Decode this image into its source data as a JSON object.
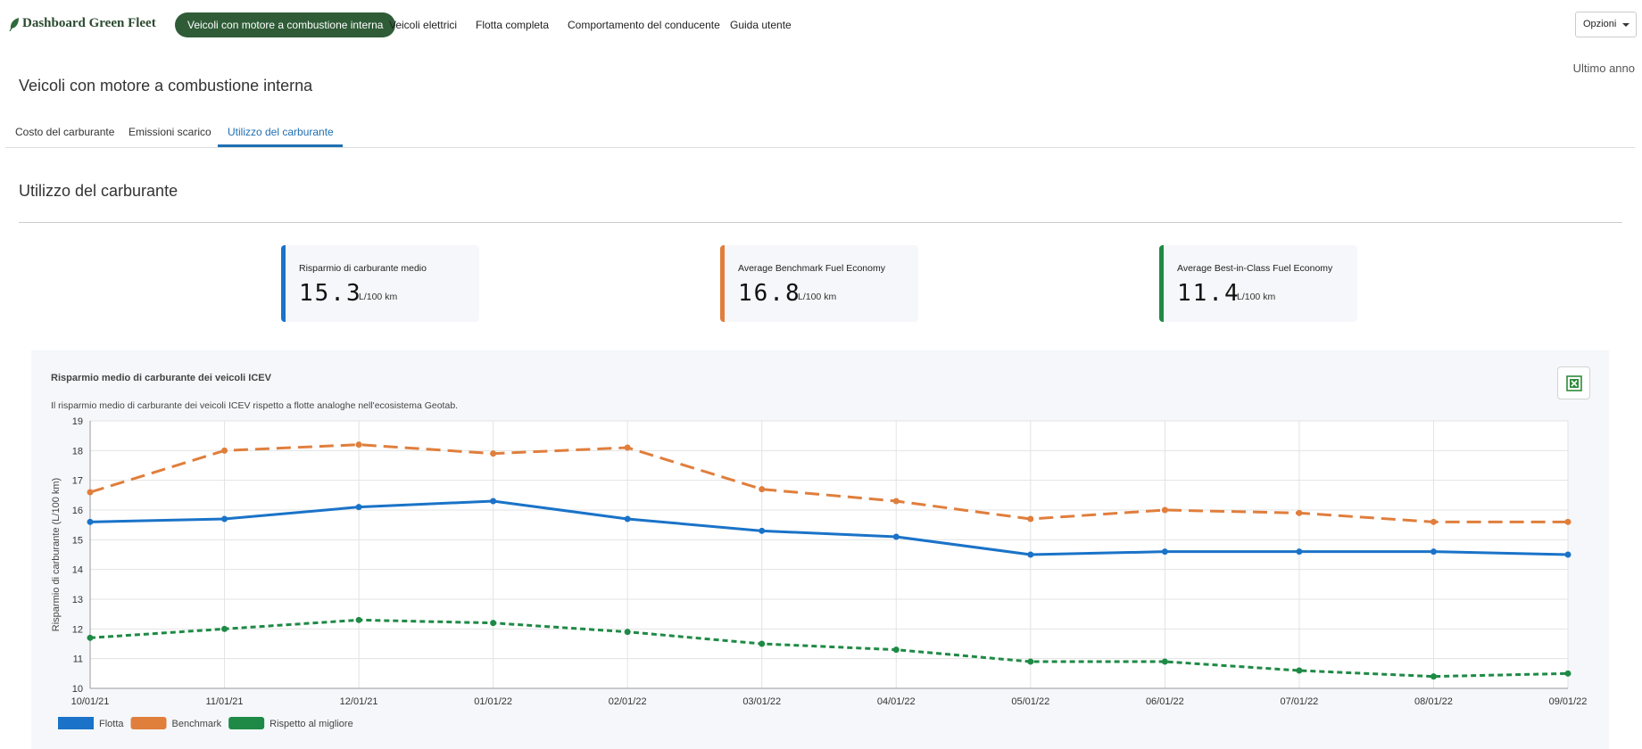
{
  "nav": {
    "logo": "Dashboard Green Fleet",
    "items": [
      {
        "label": "Veicoli con motore a combustione interna",
        "active": true
      },
      {
        "label": "Veicoli elettrici"
      },
      {
        "label": "Flotta completa"
      },
      {
        "label": "Comportamento del conducente"
      },
      {
        "label": "Guida utente"
      }
    ],
    "options_label": "Opzioni"
  },
  "period": "Ultimo anno",
  "page_title": "Veicoli con motore a combustione interna",
  "tabs": [
    {
      "label": "Costo del carburante"
    },
    {
      "label": "Emissioni scarico"
    },
    {
      "label": "Utilizzo del carburante",
      "active": true
    }
  ],
  "section_title": "Utilizzo del carburante",
  "cards": [
    {
      "label": "Risparmio di carburante medio",
      "value": "15.3",
      "unit": "L/100 km",
      "color": "#1a73c8"
    },
    {
      "label": "Average Benchmark Fuel Economy",
      "value": "16.8",
      "unit": "L/100 km",
      "color": "#e07e3c"
    },
    {
      "label": "Average Best-in-Class Fuel Economy",
      "value": "11.4",
      "unit": "L/100 km",
      "color": "#1e8a45"
    }
  ],
  "chart_panel": {
    "title": "Risparmio medio di carburante dei veicoli ICEV",
    "subtitle": "Il risparmio medio di carburante dei veicoli ICEV rispetto a flotte analoghe nell'ecosistema Geotab.",
    "export_icon": "excel-export-icon"
  },
  "chart_data": {
    "type": "line",
    "ylabel": "Risparmio di carburante (L/100 km)",
    "xlabel": "",
    "ylim": [
      10,
      19
    ],
    "yticks": [
      "10",
      "11",
      "12",
      "13",
      "14",
      "15",
      "16",
      "17",
      "18",
      "19"
    ],
    "categories": [
      "10/01/21",
      "11/01/21",
      "12/01/21",
      "01/01/22",
      "02/01/22",
      "03/01/22",
      "04/01/22",
      "05/01/22",
      "06/01/22",
      "07/01/22",
      "08/01/22",
      "09/01/22"
    ],
    "series": [
      {
        "name": "Flotta",
        "color": "#1a73c8",
        "dash": "solid",
        "values": [
          15.6,
          15.7,
          16.1,
          16.3,
          15.7,
          15.3,
          15.1,
          14.5,
          14.6,
          14.6,
          14.6,
          14.5
        ]
      },
      {
        "name": "Benchmark",
        "color": "#e07e3c",
        "dash": "long",
        "values": [
          16.6,
          18.0,
          18.2,
          17.9,
          18.1,
          16.7,
          16.3,
          15.7,
          16.0,
          15.9,
          15.6,
          15.6
        ]
      },
      {
        "name": "Rispetto al migliore",
        "color": "#1e8a45",
        "dash": "short",
        "values": [
          11.7,
          12.0,
          12.3,
          12.2,
          11.9,
          11.5,
          11.3,
          10.9,
          10.9,
          10.6,
          10.4,
          10.5
        ]
      }
    ],
    "grid": true,
    "legend": "bottom-left"
  }
}
